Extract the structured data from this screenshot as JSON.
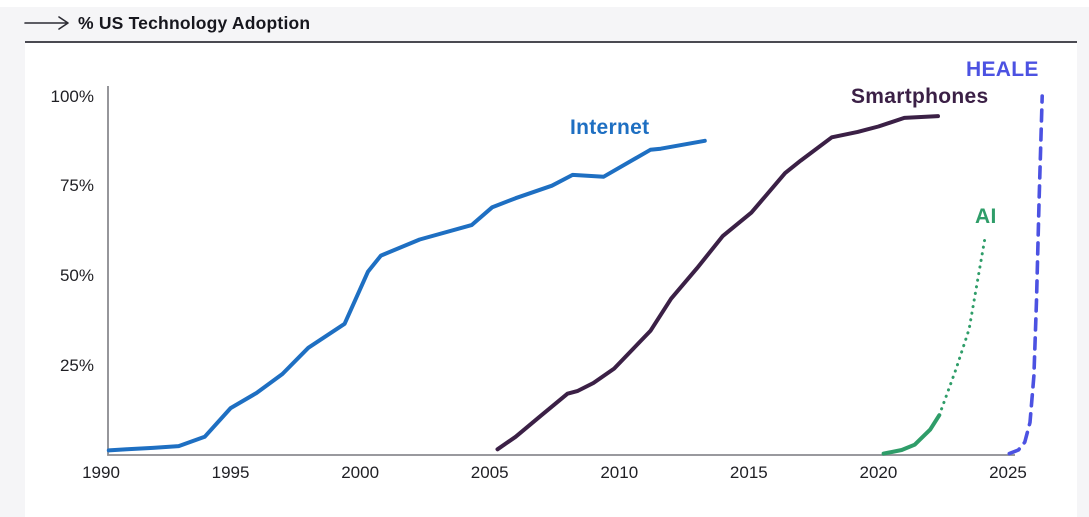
{
  "page": {
    "background": "#f5f5f7",
    "panel_background": "#ffffff",
    "top_strip_color": "#ffffff"
  },
  "header": {
    "arrow_icon": "long-right-arrow",
    "title": "% US Technology Adoption",
    "text_color": "#17171e",
    "rule_color": "#4a4a52"
  },
  "chart_data": {
    "type": "line",
    "title": "% US Technology Adoption",
    "xlabel": "",
    "ylabel": "",
    "grid": false,
    "legend_position": "inline-line-labels",
    "axis_color": "#8b8b90",
    "tick_label_color": "#1f1f24",
    "xlim": [
      1990,
      2027
    ],
    "ylim": [
      0,
      100
    ],
    "x_ticks": [
      1990,
      1995,
      2000,
      2005,
      2010,
      2015,
      2020,
      2025
    ],
    "y_ticks": [
      25,
      50,
      75,
      100
    ],
    "y_tick_labels": [
      "25%",
      "50%",
      "75%",
      "100%"
    ],
    "series": [
      {
        "name": "Internet",
        "color": "#1e6fc2",
        "line_style": "solid",
        "x": [
          1990.3,
          1991,
          1992,
          1993,
          1994,
          1995,
          1996,
          1997,
          1998,
          1999.4,
          2000.3,
          2000.8,
          2002.3,
          2004.3,
          2005.1,
          2006,
          2007.4,
          2008.2,
          2009.4,
          2011.2,
          2011.6,
          2013.3
        ],
        "values": [
          1.2,
          1.5,
          1.9,
          2.4,
          5,
          13,
          17.2,
          22.5,
          29.8,
          36.5,
          51,
          55.5,
          60,
          64,
          69,
          71.5,
          75,
          78,
          77.5,
          85,
          85.3,
          87.5
        ]
      },
      {
        "name": "Smartphones",
        "color": "#3b2046",
        "line_style": "solid",
        "x": [
          2005.3,
          2006,
          2007,
          2008,
          2008.4,
          2009,
          2009.8,
          2011.2,
          2012,
          2013,
          2014,
          2015.1,
          2016.4,
          2017,
          2018.2,
          2019.2,
          2020,
          2021,
          2022.3
        ],
        "values": [
          1.5,
          5,
          11,
          17,
          17.8,
          20,
          24,
          34.5,
          43.5,
          52,
          61,
          67.5,
          78.5,
          82,
          88.5,
          90,
          91.5,
          93.9,
          94.4
        ]
      },
      {
        "name": "AI",
        "color": "#2f9d69",
        "line_style": "solid-then-dotted",
        "segments": [
          {
            "style": "solid",
            "x": [
              2020.2,
              2020.9,
              2021.4,
              2022,
              2022.35
            ],
            "values": [
              0.3,
              1.3,
              2.8,
              7,
              11
            ]
          },
          {
            "style": "dotted",
            "x": [
              2022.35,
              2023,
              2023.5,
              2024.1
            ],
            "values": [
              11,
              24,
              35,
              60
            ]
          }
        ]
      },
      {
        "name": "HEALE",
        "color": "#4c52e2",
        "line_style": "dashed",
        "x": [
          2025.05,
          2025.4,
          2025.65,
          2025.85,
          2026.0,
          2026.1,
          2026.2,
          2026.32
        ],
        "values": [
          0.3,
          1.3,
          3.5,
          9,
          22,
          43,
          71,
          100
        ]
      }
    ]
  }
}
